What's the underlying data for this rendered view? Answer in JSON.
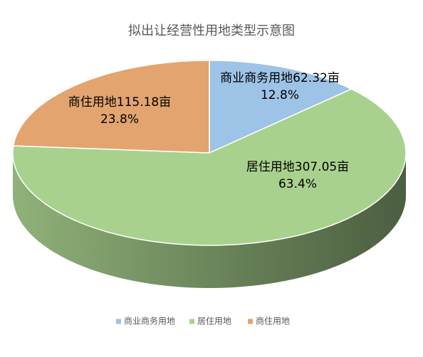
{
  "chart_data": {
    "type": "pie3d",
    "title": "拟出让经营性用地类型示意图",
    "categories": [
      "商业商务用地",
      "居住用地",
      "商住用地"
    ],
    "values": [
      62.32,
      307.05,
      115.18
    ],
    "value_labels": [
      "商业商务用地62.32亩",
      "居住用地307.05亩",
      "商住用地115.18亩"
    ],
    "percents": [
      12.8,
      63.4,
      23.8
    ],
    "percent_labels": [
      "12.8%",
      "63.4%",
      "23.8%"
    ],
    "colors": [
      "#9dc3e6",
      "#a9d18e",
      "#e3a46f"
    ],
    "legend": "bottom"
  }
}
